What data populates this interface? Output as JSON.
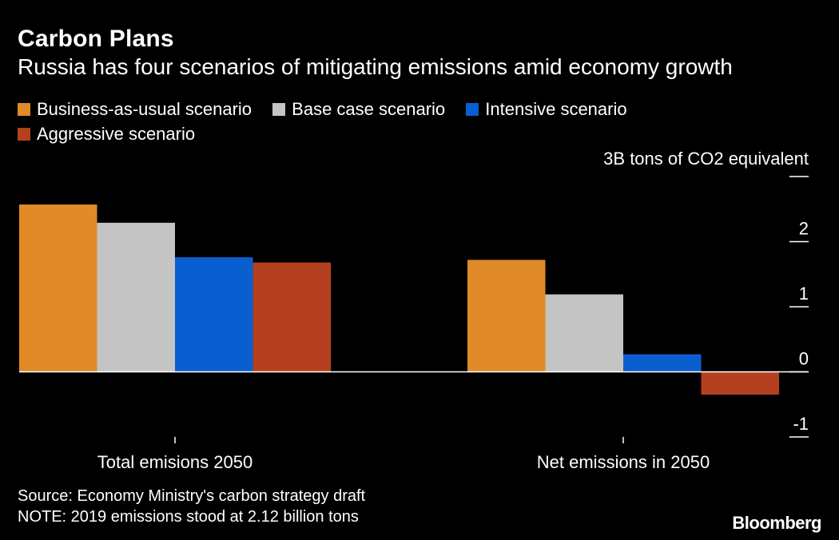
{
  "title": "Carbon Plans",
  "subtitle": "Russia has four scenarios of mitigating emissions amid economy growth",
  "source": "Source: Economy Ministry's carbon strategy draft",
  "note": "NOTE: 2019 emissions stood at 2.12 billion tons",
  "brand": "Bloomberg",
  "colors": {
    "background": "#000000",
    "business_as_usual": "#E08A28",
    "base_case": "#C4C4C4",
    "intensive": "#0A5FD0",
    "aggressive": "#B5401F"
  },
  "chart_data": {
    "type": "bar",
    "categories": [
      "Total emisions 2050",
      "Net emissions in 2050"
    ],
    "series": [
      {
        "name": "Business-as-usual scenario",
        "color": "#E08A28",
        "values": [
          2.57,
          1.72
        ]
      },
      {
        "name": "Base case scenario",
        "color": "#C4C4C4",
        "values": [
          2.29,
          1.19
        ]
      },
      {
        "name": "Intensive scenario",
        "color": "#0A5FD0",
        "values": [
          1.76,
          0.27
        ]
      },
      {
        "name": "Aggressive scenario",
        "color": "#B5401F",
        "values": [
          1.68,
          -0.35
        ]
      }
    ],
    "ylabel": "3B tons of CO2 equivalent",
    "yticks": [
      {
        "value": 3,
        "label": ""
      },
      {
        "value": 2,
        "label": "2"
      },
      {
        "value": 1,
        "label": "1"
      },
      {
        "value": 0,
        "label": "0"
      },
      {
        "value": -1,
        "label": "-1"
      }
    ],
    "ylim": [
      -1,
      3
    ],
    "legend_position": "top",
    "grid": false
  }
}
